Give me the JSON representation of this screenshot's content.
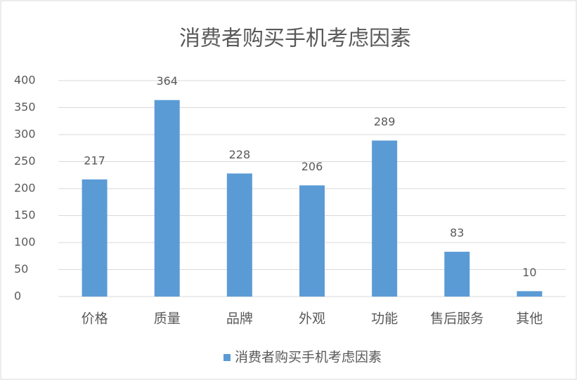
{
  "chart_data": {
    "type": "bar",
    "title": "消费者购买手机考虑因素",
    "categories": [
      "价格",
      "质量",
      "品牌",
      "外观",
      "功能",
      "售后服务",
      "其他"
    ],
    "series": [
      {
        "name": "消费者购买手机考虑因素",
        "color": "#5b9bd5",
        "values": [
          217,
          364,
          228,
          206,
          289,
          83,
          10
        ]
      }
    ],
    "ylim": [
      0,
      400
    ],
    "yticks": [
      0,
      50,
      100,
      150,
      200,
      250,
      300,
      350,
      400
    ],
    "grid": true,
    "legend": "bottom"
  }
}
